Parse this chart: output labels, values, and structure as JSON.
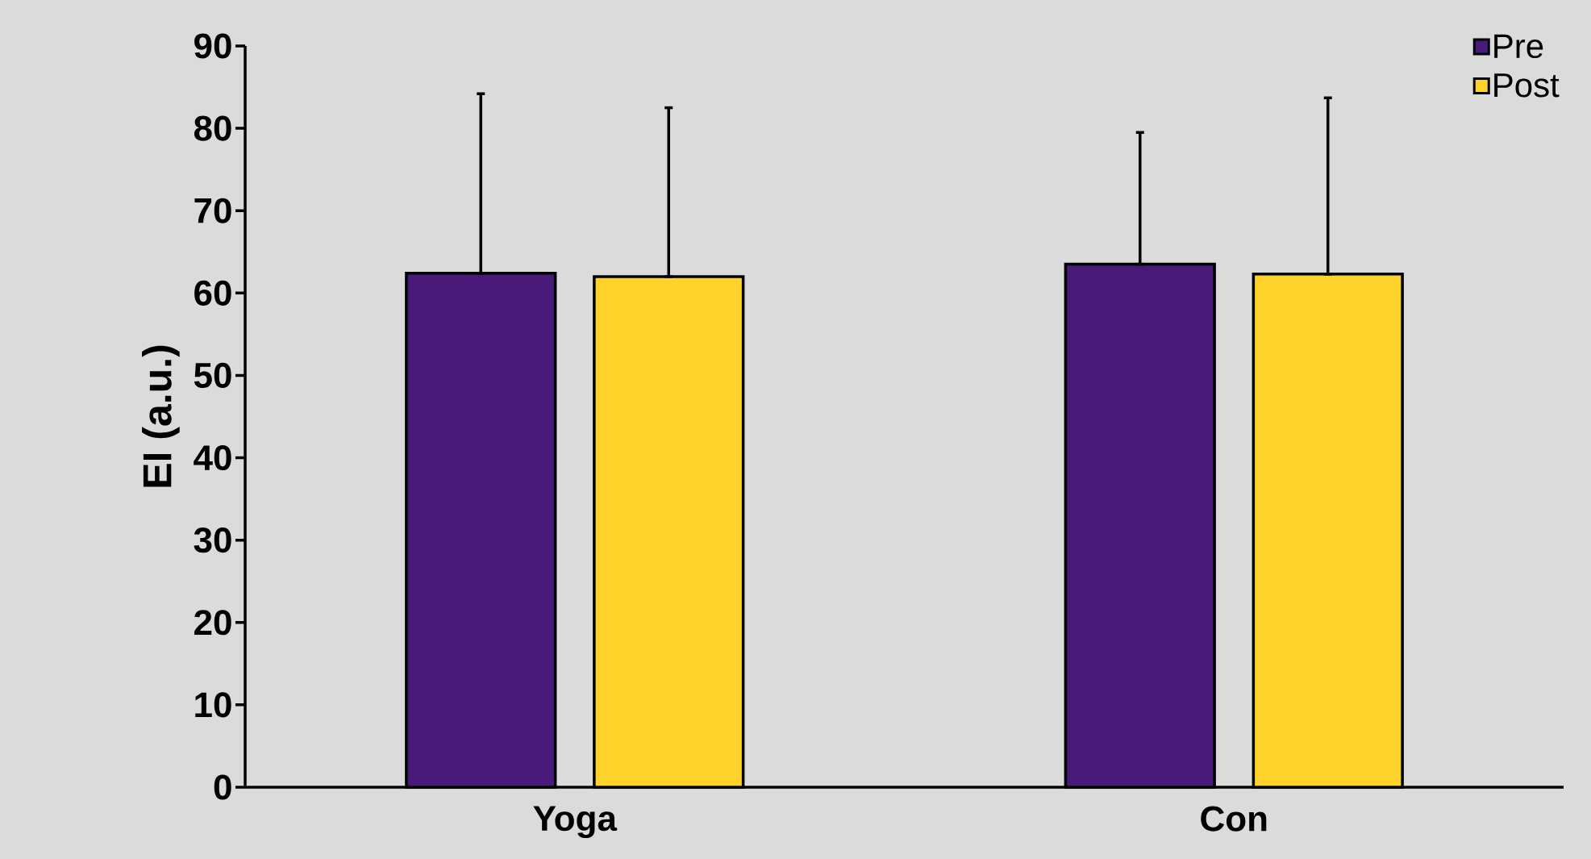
{
  "chart_data": {
    "type": "bar",
    "ylabel": "EI (a.u.)",
    "categories": [
      "Yoga",
      "Con"
    ],
    "series": [
      {
        "name": "Pre",
        "color": "#4a1a7a",
        "values": [
          62.4,
          63.5
        ],
        "errors": [
          [
            62.4,
            84.2
          ],
          [
            63.5,
            79.5
          ]
        ]
      },
      {
        "name": "Post",
        "color": "#fdd22a",
        "values": [
          62.0,
          62.3
        ],
        "errors": [
          [
            62.0,
            82.5
          ],
          [
            62.3,
            83.7
          ]
        ]
      }
    ],
    "ylim": [
      0,
      90
    ],
    "yticks": [
      0,
      10,
      20,
      30,
      40,
      50,
      60,
      70,
      80,
      90
    ],
    "legend": "top right",
    "marker": "square"
  }
}
